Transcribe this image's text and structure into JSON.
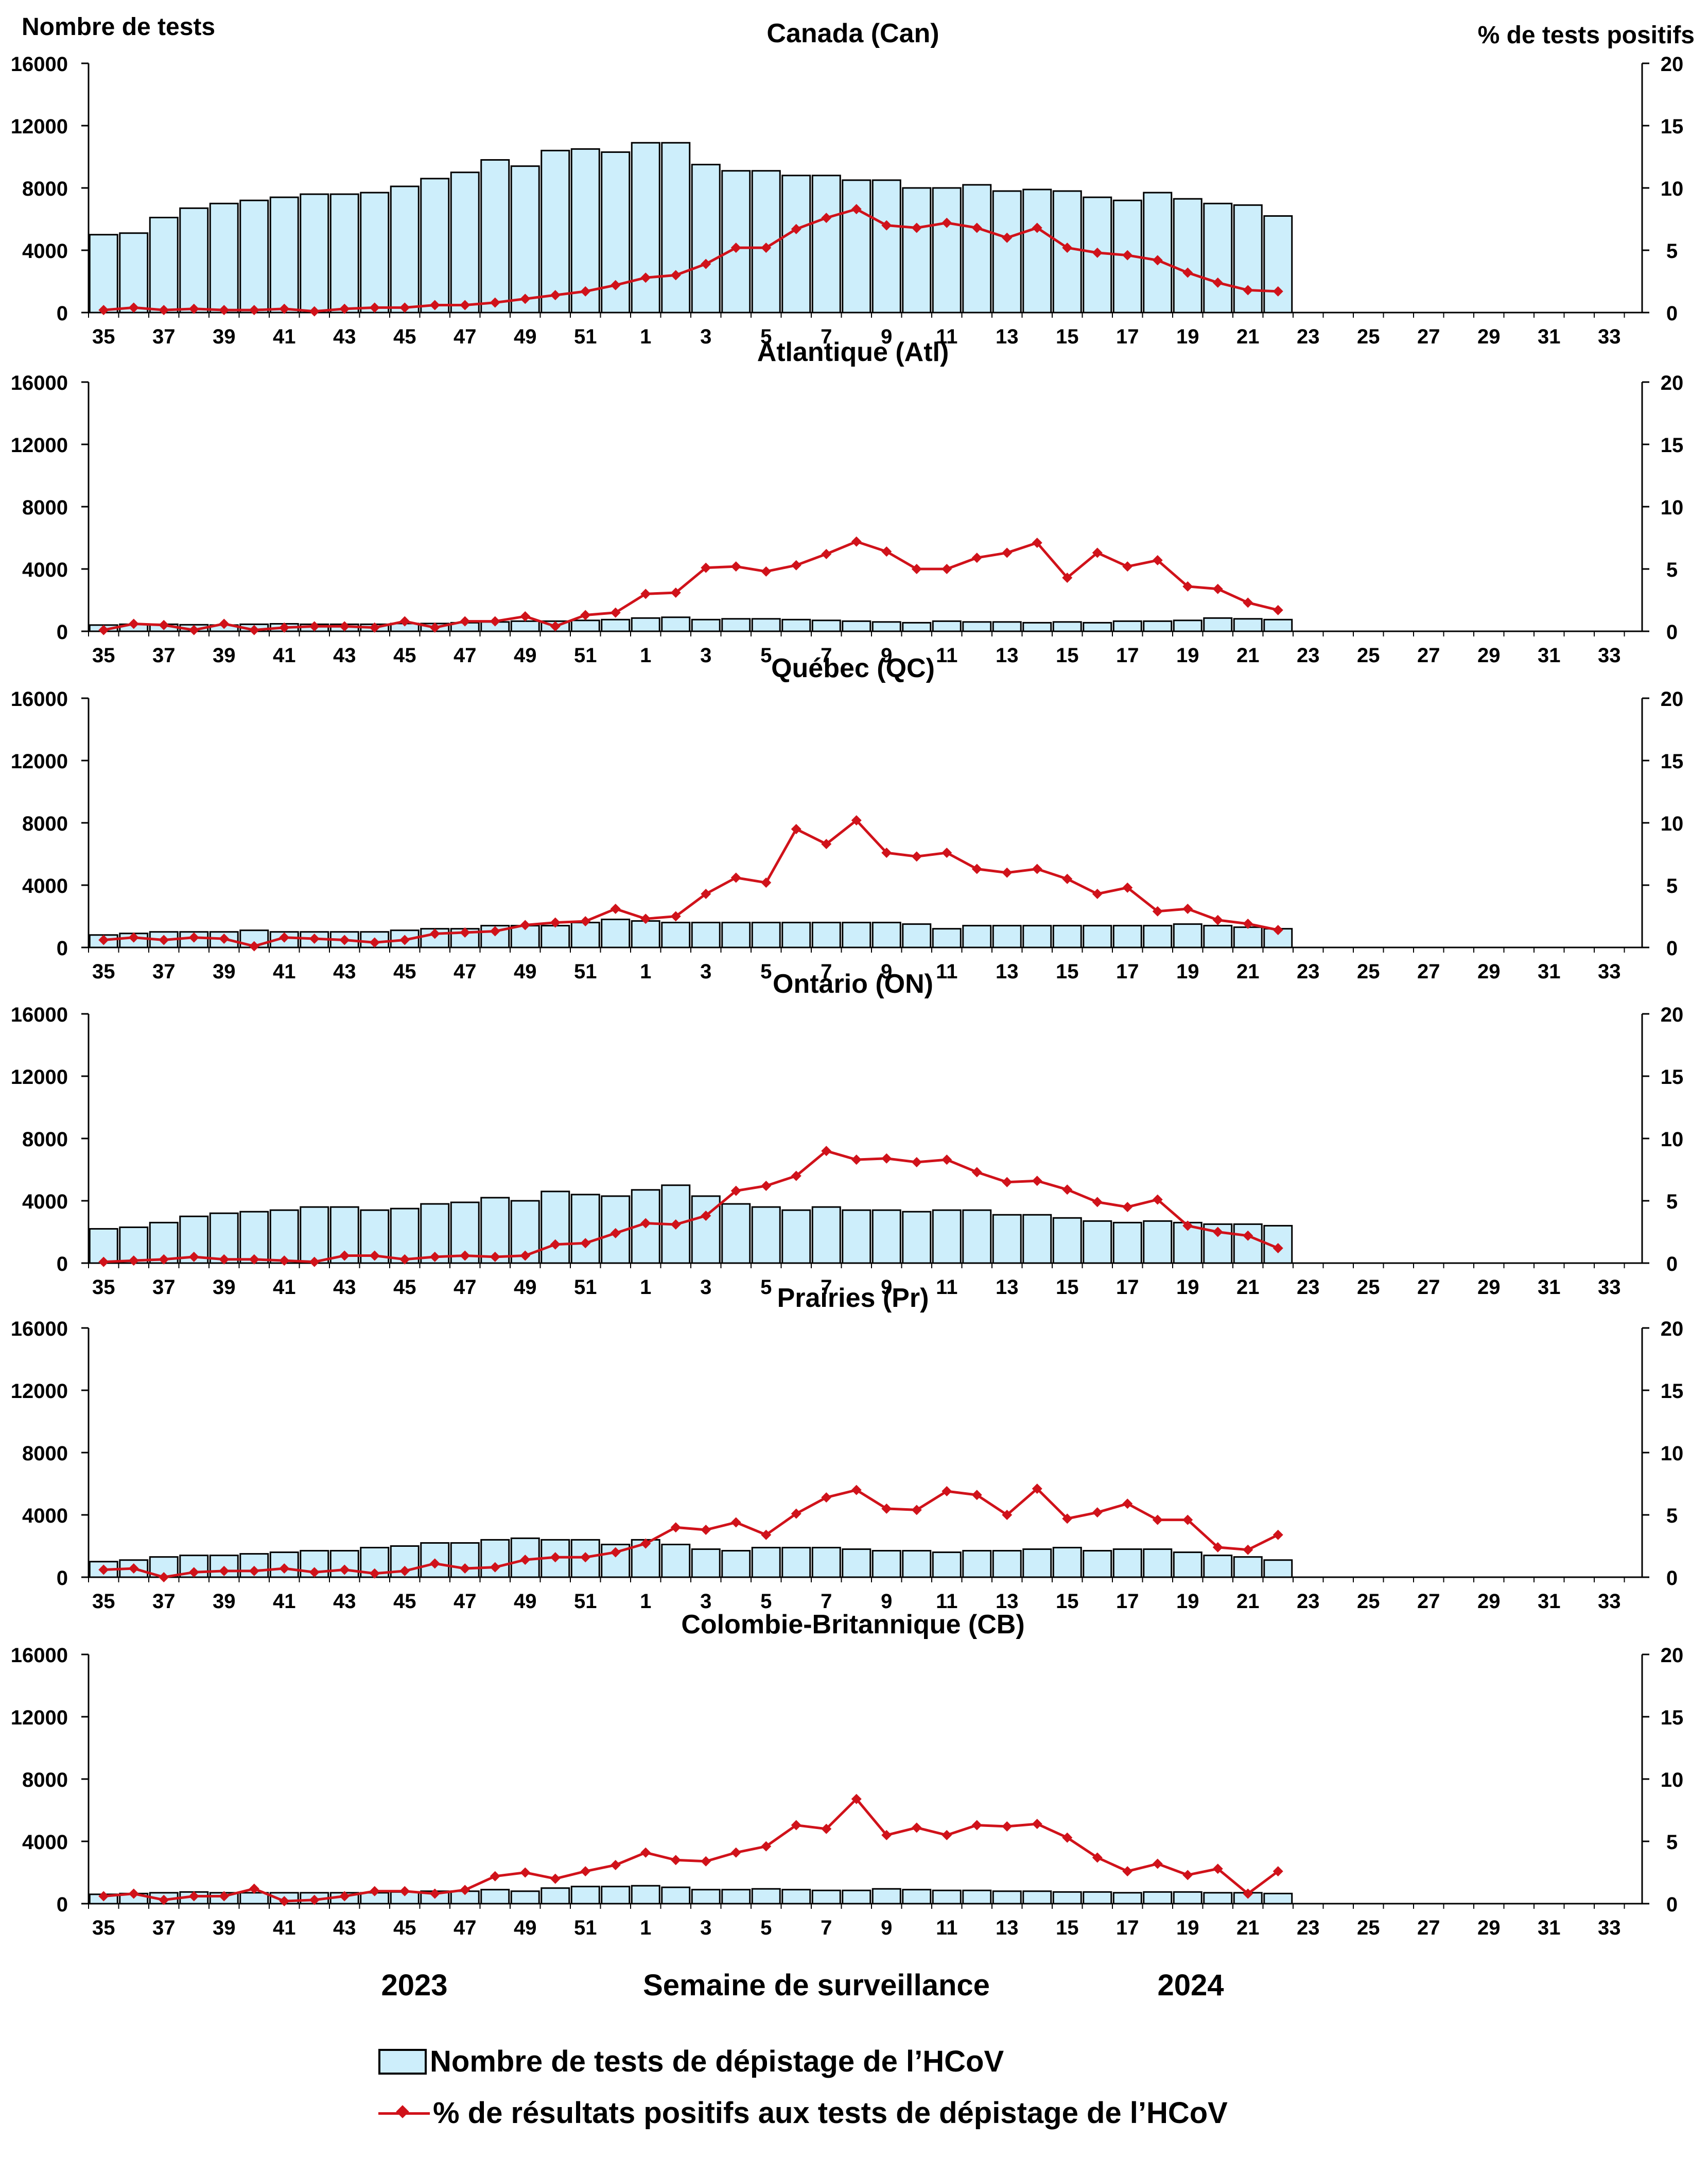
{
  "axis_titles": {
    "left": "Nombre de tests",
    "right": "% de tests positifs",
    "x": "Semaine de surveillance"
  },
  "years": {
    "first": "2023",
    "second": "2024"
  },
  "legend": {
    "bars": "Nombre de tests de dépistage de l’HCoV",
    "line": "% de résultats positifs aux tests de dépistage de l’HCoV"
  },
  "colors": {
    "bar_fill": "#cdeefb",
    "bar_stroke": "#000000",
    "line": "#d0121a"
  },
  "chart_data": [
    {
      "type": "bar+line",
      "title": "Canada (Can)",
      "categories": [
        35,
        36,
        37,
        38,
        39,
        40,
        41,
        42,
        43,
        44,
        45,
        46,
        47,
        48,
        49,
        50,
        51,
        52,
        1,
        2,
        3,
        4,
        5,
        6,
        7,
        8,
        9,
        10,
        11,
        12,
        13,
        14,
        15,
        16,
        17,
        18,
        19,
        20,
        21,
        22
      ],
      "x_tick_labels": [
        "35",
        "37",
        "39",
        "41",
        "43",
        "45",
        "47",
        "49",
        "51",
        "1",
        "3",
        "5",
        "7",
        "9",
        "11",
        "13",
        "15",
        "17",
        "19",
        "21",
        "23",
        "25",
        "27",
        "29",
        "31",
        "33"
      ],
      "ylim_left": [
        0,
        16000
      ],
      "yticks_left": [
        0,
        4000,
        8000,
        12000,
        16000
      ],
      "ylim_right": [
        0,
        20
      ],
      "yticks_right": [
        0,
        5,
        10,
        15,
        20
      ],
      "series": [
        {
          "name": "Nombre de tests de dépistage de l’HCoV",
          "kind": "bar",
          "axis": "left",
          "values": [
            5000,
            5100,
            6100,
            6700,
            7000,
            7200,
            7400,
            7600,
            7600,
            7700,
            8100,
            8600,
            9000,
            9800,
            9400,
            10400,
            10500,
            10300,
            10900,
            10900,
            9500,
            9100,
            9100,
            8800,
            8800,
            8500,
            8500,
            8000,
            8000,
            8200,
            7800,
            7900,
            7800,
            7400,
            7200,
            7700,
            7300,
            7000,
            6900,
            6200
          ]
        },
        {
          "name": "% de résultats positifs aux tests de dépistage de l’HCoV",
          "kind": "line",
          "axis": "right",
          "values": [
            0.2,
            0.4,
            0.2,
            0.3,
            0.2,
            0.2,
            0.3,
            0.1,
            0.3,
            0.4,
            0.4,
            0.6,
            0.6,
            0.8,
            1.1,
            1.4,
            1.7,
            2.2,
            2.8,
            3.0,
            3.9,
            5.2,
            5.2,
            6.7,
            7.6,
            8.3,
            7.0,
            6.8,
            7.2,
            6.8,
            6.0,
            6.8,
            5.2,
            4.8,
            4.6,
            4.2,
            3.2,
            2.4,
            1.8,
            1.7
          ]
        }
      ]
    },
    {
      "type": "bar+line",
      "title": "Atlantique (Atl)",
      "categories": [
        35,
        36,
        37,
        38,
        39,
        40,
        41,
        42,
        43,
        44,
        45,
        46,
        47,
        48,
        49,
        50,
        51,
        52,
        1,
        2,
        3,
        4,
        5,
        6,
        7,
        8,
        9,
        10,
        11,
        12,
        13,
        14,
        15,
        16,
        17,
        18,
        19,
        20,
        21,
        22
      ],
      "x_tick_labels": [
        "35",
        "37",
        "39",
        "41",
        "43",
        "45",
        "47",
        "49",
        "51",
        "1",
        "3",
        "5",
        "7",
        "9",
        "11",
        "13",
        "15",
        "17",
        "19",
        "21",
        "23",
        "25",
        "27",
        "29",
        "31",
        "33"
      ],
      "ylim_left": [
        0,
        16000
      ],
      "yticks_left": [
        0,
        4000,
        8000,
        12000,
        16000
      ],
      "ylim_right": [
        0,
        20
      ],
      "yticks_right": [
        0,
        5,
        10,
        15,
        20
      ],
      "series": [
        {
          "name": "Nombre de tests de dépistage de l’HCoV",
          "kind": "bar",
          "axis": "left",
          "values": [
            400,
            450,
            450,
            420,
            400,
            450,
            480,
            450,
            450,
            450,
            500,
            500,
            550,
            600,
            650,
            650,
            700,
            750,
            850,
            900,
            750,
            800,
            800,
            750,
            700,
            650,
            600,
            550,
            650,
            600,
            600,
            550,
            600,
            550,
            650,
            650,
            700,
            850,
            800,
            750
          ]
        },
        {
          "name": "% de résultats positifs aux tests de dépistage de l’HCoV",
          "kind": "line",
          "axis": "right",
          "values": [
            0.1,
            0.6,
            0.5,
            0.1,
            0.6,
            0.1,
            0.3,
            0.4,
            0.4,
            0.3,
            0.8,
            0.3,
            0.8,
            0.8,
            1.2,
            0.4,
            1.3,
            1.5,
            3.0,
            3.1,
            5.1,
            5.2,
            4.8,
            5.3,
            6.2,
            7.2,
            6.4,
            5.0,
            5.0,
            5.9,
            6.3,
            7.1,
            4.3,
            6.3,
            5.2,
            5.7,
            3.6,
            3.4,
            2.3,
            1.7
          ]
        }
      ]
    },
    {
      "type": "bar+line",
      "title": "Québec (QC)",
      "categories": [
        35,
        36,
        37,
        38,
        39,
        40,
        41,
        42,
        43,
        44,
        45,
        46,
        47,
        48,
        49,
        50,
        51,
        52,
        1,
        2,
        3,
        4,
        5,
        6,
        7,
        8,
        9,
        10,
        11,
        12,
        13,
        14,
        15,
        16,
        17,
        18,
        19,
        20,
        21,
        22
      ],
      "x_tick_labels": [
        "35",
        "37",
        "39",
        "41",
        "43",
        "45",
        "47",
        "49",
        "51",
        "1",
        "3",
        "5",
        "7",
        "9",
        "11",
        "13",
        "15",
        "17",
        "19",
        "21",
        "23",
        "25",
        "27",
        "29",
        "31",
        "33"
      ],
      "ylim_left": [
        0,
        16000
      ],
      "yticks_left": [
        0,
        4000,
        8000,
        12000,
        16000
      ],
      "ylim_right": [
        0,
        20
      ],
      "yticks_right": [
        0,
        5,
        10,
        15,
        20
      ],
      "series": [
        {
          "name": "Nombre de tests de dépistage de l’HCoV",
          "kind": "bar",
          "axis": "left",
          "values": [
            800,
            900,
            1000,
            1000,
            1000,
            1100,
            1000,
            1000,
            1000,
            1000,
            1100,
            1200,
            1200,
            1400,
            1400,
            1400,
            1600,
            1800,
            1700,
            1600,
            1600,
            1600,
            1600,
            1600,
            1600,
            1600,
            1600,
            1500,
            1200,
            1400,
            1400,
            1400,
            1400,
            1400,
            1400,
            1400,
            1500,
            1400,
            1300,
            1200
          ]
        },
        {
          "name": "% de résultats positifs aux tests de dépistage de l’HCoV",
          "kind": "line",
          "axis": "right",
          "values": [
            0.6,
            0.8,
            0.6,
            0.8,
            0.7,
            0.1,
            0.8,
            0.7,
            0.6,
            0.4,
            0.6,
            1.1,
            1.2,
            1.3,
            1.8,
            2.0,
            2.1,
            3.1,
            2.3,
            2.5,
            4.3,
            5.6,
            5.2,
            9.5,
            8.3,
            10.2,
            7.6,
            7.3,
            7.6,
            6.3,
            6.0,
            6.3,
            5.5,
            4.3,
            4.8,
            2.9,
            3.1,
            2.2,
            1.9,
            1.4
          ]
        }
      ]
    },
    {
      "type": "bar+line",
      "title": "Ontario (ON)",
      "categories": [
        35,
        36,
        37,
        38,
        39,
        40,
        41,
        42,
        43,
        44,
        45,
        46,
        47,
        48,
        49,
        50,
        51,
        52,
        1,
        2,
        3,
        4,
        5,
        6,
        7,
        8,
        9,
        10,
        11,
        12,
        13,
        14,
        15,
        16,
        17,
        18,
        19,
        20,
        21,
        22
      ],
      "x_tick_labels": [
        "35",
        "37",
        "39",
        "41",
        "43",
        "45",
        "47",
        "49",
        "51",
        "1",
        "3",
        "5",
        "7",
        "9",
        "11",
        "13",
        "15",
        "17",
        "19",
        "21",
        "23",
        "25",
        "27",
        "29",
        "31",
        "33"
      ],
      "ylim_left": [
        0,
        16000
      ],
      "yticks_left": [
        0,
        4000,
        8000,
        12000,
        16000
      ],
      "ylim_right": [
        0,
        20
      ],
      "yticks_right": [
        0,
        5,
        10,
        15,
        20
      ],
      "series": [
        {
          "name": "Nombre de tests de dépistage de l’HCoV",
          "kind": "bar",
          "axis": "left",
          "values": [
            2200,
            2300,
            2600,
            3000,
            3200,
            3300,
            3400,
            3600,
            3600,
            3400,
            3500,
            3800,
            3900,
            4200,
            4000,
            4600,
            4400,
            4300,
            4700,
            5000,
            4300,
            3800,
            3600,
            3400,
            3600,
            3400,
            3400,
            3300,
            3400,
            3400,
            3100,
            3100,
            2900,
            2700,
            2600,
            2700,
            2600,
            2500,
            2500,
            2400
          ]
        },
        {
          "name": "% de résultats positifs aux tests de dépistage de l’HCoV",
          "kind": "line",
          "axis": "right",
          "values": [
            0.1,
            0.2,
            0.3,
            0.5,
            0.3,
            0.3,
            0.2,
            0.1,
            0.6,
            0.6,
            0.3,
            0.5,
            0.6,
            0.5,
            0.6,
            1.5,
            1.6,
            2.4,
            3.2,
            3.1,
            3.8,
            5.8,
            6.2,
            7.0,
            9.0,
            8.3,
            8.4,
            8.1,
            8.3,
            7.3,
            6.5,
            6.6,
            5.9,
            4.9,
            4.5,
            5.1,
            3.0,
            2.5,
            2.2,
            1.2
          ]
        }
      ]
    },
    {
      "type": "bar+line",
      "title": "Prairies (Pr)",
      "categories": [
        35,
        36,
        37,
        38,
        39,
        40,
        41,
        42,
        43,
        44,
        45,
        46,
        47,
        48,
        49,
        50,
        51,
        52,
        1,
        2,
        3,
        4,
        5,
        6,
        7,
        8,
        9,
        10,
        11,
        12,
        13,
        14,
        15,
        16,
        17,
        18,
        19,
        20,
        21,
        22
      ],
      "x_tick_labels": [
        "35",
        "37",
        "39",
        "41",
        "43",
        "45",
        "47",
        "49",
        "51",
        "1",
        "3",
        "5",
        "7",
        "9",
        "11",
        "13",
        "15",
        "17",
        "19",
        "21",
        "23",
        "25",
        "27",
        "29",
        "31",
        "33"
      ],
      "ylim_left": [
        0,
        16000
      ],
      "yticks_left": [
        0,
        4000,
        8000,
        12000,
        16000
      ],
      "ylim_right": [
        0,
        20
      ],
      "yticks_right": [
        0,
        5,
        10,
        15,
        20
      ],
      "series": [
        {
          "name": "Nombre de tests de dépistage de l’HCoV",
          "kind": "bar",
          "axis": "left",
          "values": [
            1000,
            1100,
            1300,
            1400,
            1400,
            1500,
            1600,
            1700,
            1700,
            1900,
            2000,
            2200,
            2200,
            2400,
            2500,
            2400,
            2400,
            2100,
            2400,
            2100,
            1800,
            1700,
            1900,
            1900,
            1900,
            1800,
            1700,
            1700,
            1600,
            1700,
            1700,
            1800,
            1900,
            1700,
            1800,
            1800,
            1600,
            1400,
            1300,
            1100
          ]
        },
        {
          "name": "% de résultats positifs aux tests de dépistage de l’HCoV",
          "kind": "line",
          "axis": "right",
          "values": [
            0.6,
            0.7,
            0.0,
            0.4,
            0.5,
            0.5,
            0.7,
            0.4,
            0.6,
            0.3,
            0.5,
            1.1,
            0.7,
            0.8,
            1.4,
            1.6,
            1.6,
            2.0,
            2.7,
            4.0,
            3.8,
            4.4,
            3.4,
            5.1,
            6.4,
            7.0,
            5.5,
            5.4,
            6.9,
            6.6,
            5.0,
            7.1,
            4.7,
            5.2,
            5.9,
            4.6,
            4.6,
            2.4,
            2.2,
            3.4
          ]
        }
      ]
    },
    {
      "type": "bar+line",
      "title": "Colombie-Britannique (CB)",
      "categories": [
        35,
        36,
        37,
        38,
        39,
        40,
        41,
        42,
        43,
        44,
        45,
        46,
        47,
        48,
        49,
        50,
        51,
        52,
        1,
        2,
        3,
        4,
        5,
        6,
        7,
        8,
        9,
        10,
        11,
        12,
        13,
        14,
        15,
        16,
        17,
        18,
        19,
        20,
        21,
        22
      ],
      "x_tick_labels": [
        "35",
        "37",
        "39",
        "41",
        "43",
        "45",
        "47",
        "49",
        "51",
        "1",
        "3",
        "5",
        "7",
        "9",
        "11",
        "13",
        "15",
        "17",
        "19",
        "21",
        "23",
        "25",
        "27",
        "29",
        "31",
        "33"
      ],
      "ylim_left": [
        0,
        16000
      ],
      "yticks_left": [
        0,
        4000,
        8000,
        12000,
        16000
      ],
      "ylim_right": [
        0,
        20
      ],
      "yticks_right": [
        0,
        5,
        10,
        15,
        20
      ],
      "series": [
        {
          "name": "Nombre de tests de dépistage de l’HCoV",
          "kind": "bar",
          "axis": "left",
          "values": [
            600,
            650,
            700,
            750,
            700,
            700,
            700,
            700,
            700,
            700,
            750,
            800,
            800,
            900,
            800,
            1000,
            1100,
            1100,
            1150,
            1050,
            900,
            900,
            950,
            900,
            850,
            850,
            950,
            900,
            850,
            850,
            800,
            800,
            750,
            750,
            700,
            750,
            750,
            700,
            700,
            650
          ]
        },
        {
          "name": "% de résultats positifs aux tests de dépistage de l’HCoV",
          "kind": "line",
          "axis": "right",
          "values": [
            0.6,
            0.8,
            0.3,
            0.6,
            0.6,
            1.2,
            0.2,
            0.3,
            0.6,
            1.0,
            1.0,
            0.8,
            1.1,
            2.2,
            2.5,
            2.0,
            2.6,
            3.1,
            4.1,
            3.5,
            3.4,
            4.1,
            4.6,
            6.3,
            6.0,
            8.4,
            5.5,
            6.1,
            5.5,
            6.3,
            6.2,
            6.4,
            5.3,
            3.7,
            2.6,
            3.2,
            2.3,
            2.8,
            0.8,
            2.6
          ]
        }
      ]
    }
  ]
}
